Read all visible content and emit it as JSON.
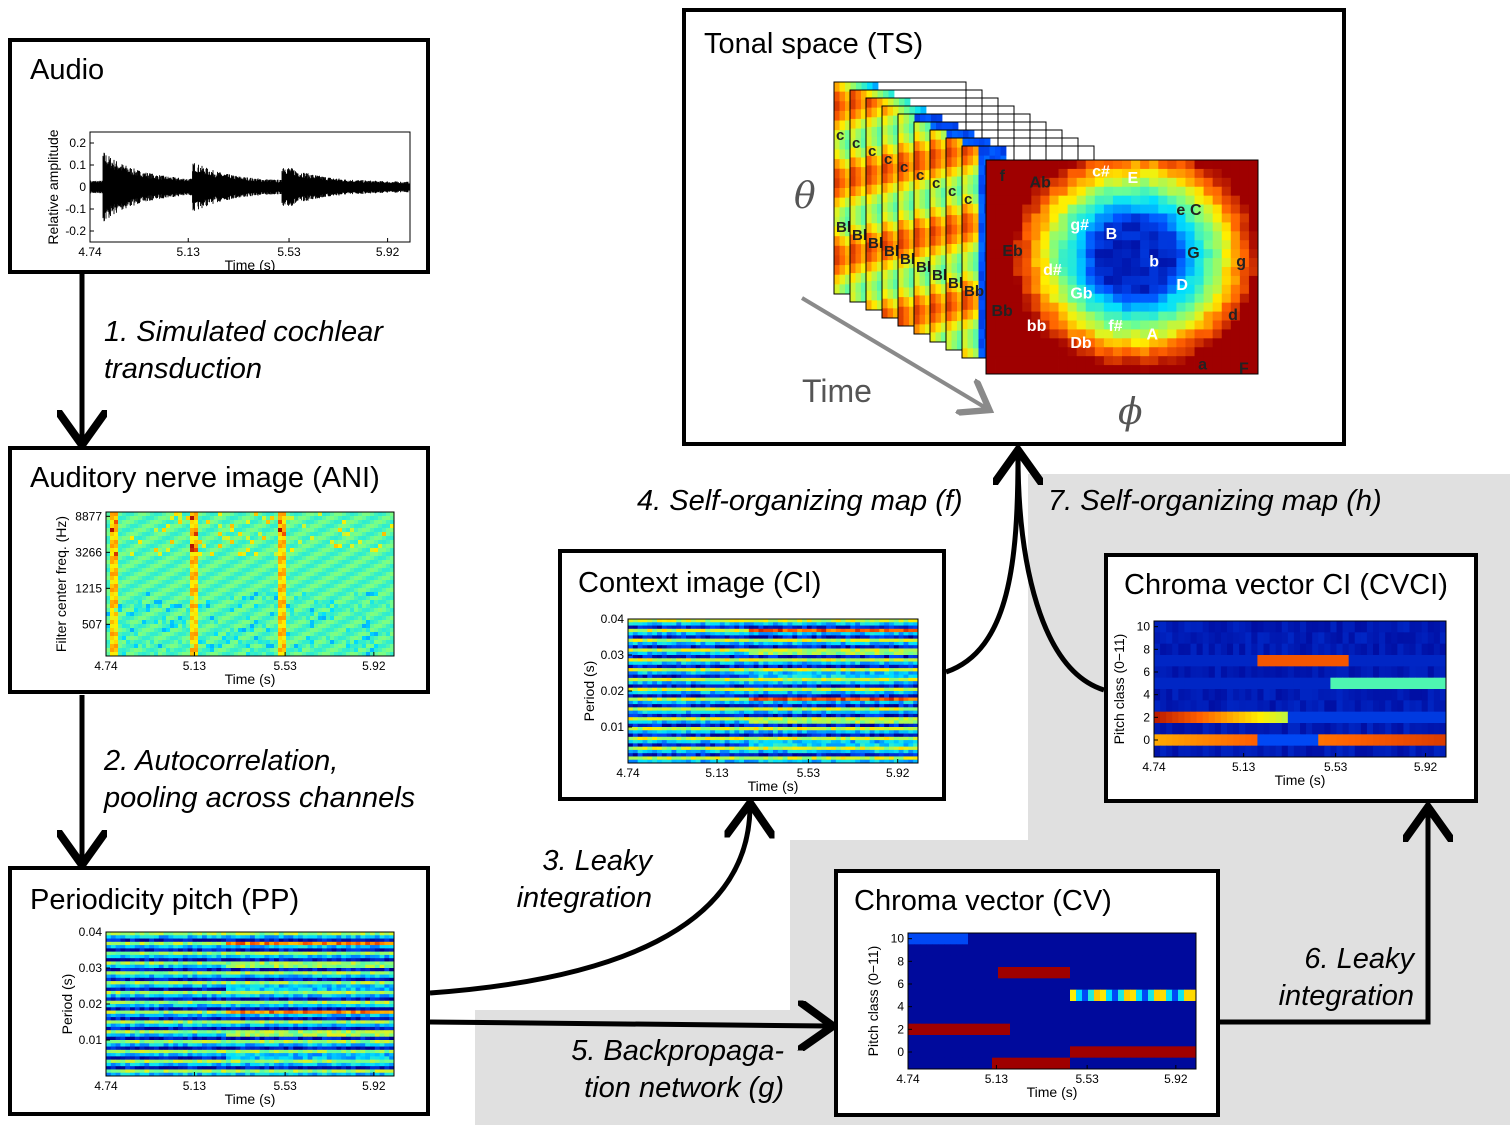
{
  "boxes": {
    "audio": {
      "title": "Audio",
      "ylabel": "Relative amplitude",
      "xlabel": "Time (s)",
      "xticks": [
        "4.74",
        "5.13",
        "5.53",
        "5.92"
      ],
      "yticks": [
        "0.2",
        "0.1",
        "0",
        "-0.1",
        "-0.2"
      ]
    },
    "ani": {
      "title": "Auditory nerve image (ANI)",
      "ylabel": "Filter center freq. (Hz)",
      "xlabel": "Time (s)",
      "xticks": [
        "4.74",
        "5.13",
        "5.53",
        "5.92"
      ],
      "yticks": [
        "8877",
        "3266",
        "1215",
        "507"
      ]
    },
    "pp": {
      "title": "Periodicity pitch (PP)",
      "ylabel": "Period (s)",
      "xlabel": "Time (s)",
      "xticks": [
        "4.74",
        "5.13",
        "5.53",
        "5.92"
      ],
      "yticks": [
        "0.04",
        "0.03",
        "0.02",
        "0.01"
      ]
    },
    "ci": {
      "title": "Context image (CI)",
      "ylabel": "Period (s)",
      "xlabel": "Time (s)",
      "xticks": [
        "4.74",
        "5.13",
        "5.53",
        "5.92"
      ],
      "yticks": [
        "0.04",
        "0.03",
        "0.02",
        "0.01"
      ]
    },
    "cv": {
      "title": "Chroma vector (CV)",
      "ylabel": "Pitch class (0−11)",
      "xlabel": "Time (s)",
      "xticks": [
        "4.74",
        "5.13",
        "5.53",
        "5.92"
      ],
      "yticks": [
        "10",
        "8",
        "6",
        "4",
        "2",
        "0"
      ]
    },
    "cvci": {
      "title": "Chroma vector CI (CVCI)",
      "ylabel": "Pitch class (0−11)",
      "xlabel": "Time (s)",
      "xticks": [
        "4.74",
        "5.13",
        "5.53",
        "5.92"
      ],
      "yticks": [
        "10",
        "8",
        "6",
        "4",
        "2",
        "0"
      ]
    },
    "ts": {
      "title": "Tonal space (TS)",
      "theta": "θ",
      "phi": "ϕ",
      "time": "Time",
      "key_labels": {
        "dark": [
          "f",
          "Ab",
          "Eb",
          "Bb",
          "a",
          "F",
          "e",
          "C",
          "G",
          "g",
          "d"
        ],
        "light": [
          "c#",
          "E",
          "g#",
          "B",
          "b",
          "d#",
          "Gb",
          "D",
          "bb",
          "f#",
          "A",
          "Db"
        ]
      },
      "stack_labels": {
        "c": "c",
        "bb": "Bb"
      }
    }
  },
  "steps": {
    "s1": [
      "1. Simulated cochlear",
      "transduction"
    ],
    "s2": [
      "2. Autocorrelation,",
      "pooling across channels"
    ],
    "s3": [
      "3. Leaky",
      "integration"
    ],
    "s4": [
      "4. Self-organizing map (f)"
    ],
    "s5": [
      "5. Backpropaga-",
      "tion network (g)"
    ],
    "s6": [
      "6. Leaky",
      "integration"
    ],
    "s7": [
      "7. Self-organizing map (h)"
    ]
  },
  "colors": {
    "background_region": "#e0e0e0",
    "arrow": "#000000",
    "time_arrow": "#8a8a8a",
    "colormap": [
      "#00008f",
      "#0050ff",
      "#00dfff",
      "#70ff8f",
      "#ffef00",
      "#ff6000",
      "#9f0000"
    ]
  }
}
